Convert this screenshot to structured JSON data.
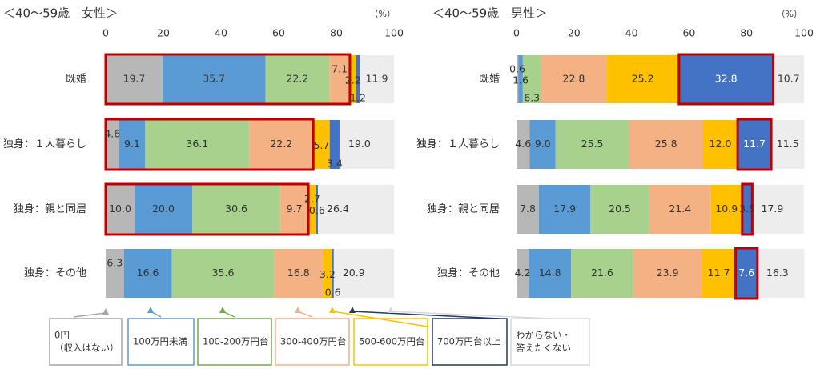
{
  "colors": {
    "zero": "#b7b7b7",
    "under100": "#5b9bd5",
    "r100_200": "#a9d18e",
    "r300_400": "#f4b183",
    "r500_600": "#ffc000",
    "over700": "#4472c4",
    "unknown": "#ededed",
    "highlight": "#c00000"
  },
  "legend": [
    {
      "key": "zero",
      "label": [
        "0円",
        "（収入はない）"
      ],
      "box_border": "#a6a6a6"
    },
    {
      "key": "under100",
      "label": [
        "100万円未満"
      ],
      "box_border": "#5b9bd5"
    },
    {
      "key": "r100_200",
      "label": [
        "100-200万円台"
      ],
      "box_border": "#70ad47"
    },
    {
      "key": "r300_400",
      "label": [
        "300-400万円台"
      ],
      "box_border": "#f4b183"
    },
    {
      "key": "r500_600",
      "label": [
        "500-600万円台"
      ],
      "box_border": "#ffc000"
    },
    {
      "key": "over700",
      "label": [
        "700万円台以上"
      ],
      "box_border": "#203864"
    },
    {
      "key": "unknown",
      "label": [
        "わからない・",
        "答えたくない"
      ],
      "box_border": "#d9d9d9"
    }
  ],
  "chart_data": [
    {
      "type": "bar",
      "orientation": "horizontal",
      "stacked": true,
      "title": "＜40～59歳　女性＞",
      "unit_label": "（%）",
      "xlim": [
        0,
        100
      ],
      "x_ticks": [
        0,
        20,
        40,
        60,
        80,
        100
      ],
      "categories": [
        "既婚",
        "独身：１人暮らし",
        "独身：親と同居",
        "独身：その他"
      ],
      "series": [
        {
          "key": "zero",
          "name": "0円（収入はない）",
          "values": [
            19.7,
            4.6,
            10.0,
            6.3
          ]
        },
        {
          "key": "under100",
          "name": "100万円未満",
          "values": [
            35.7,
            9.1,
            20.0,
            16.6
          ]
        },
        {
          "key": "r100_200",
          "name": "100-200万円台",
          "values": [
            22.2,
            36.1,
            30.6,
            35.6
          ]
        },
        {
          "key": "r300_400",
          "name": "300-400万円台",
          "values": [
            7.1,
            22.2,
            9.7,
            16.8
          ]
        },
        {
          "key": "r500_600",
          "name": "500-600万円台",
          "values": [
            2.2,
            5.7,
            2.7,
            3.2
          ]
        },
        {
          "key": "over700",
          "name": "700万円台以上",
          "values": [
            1.2,
            3.4,
            0.6,
            0.6
          ]
        },
        {
          "key": "unknown",
          "name": "わからない・答えたくない",
          "values": [
            11.9,
            19.0,
            26.4,
            20.9
          ]
        }
      ],
      "highlights": [
        {
          "row": 0,
          "from": 0,
          "to": 3
        },
        {
          "row": 1,
          "from": 0,
          "to": 3
        },
        {
          "row": 2,
          "from": 0,
          "to": 3
        }
      ]
    },
    {
      "type": "bar",
      "orientation": "horizontal",
      "stacked": true,
      "title": "＜40～59歳　男性＞",
      "unit_label": "（%）",
      "xlim": [
        0,
        100
      ],
      "x_ticks": [
        0,
        20,
        40,
        60,
        80,
        100
      ],
      "categories": [
        "既婚",
        "独身：１人暮らし",
        "独身：親と同居",
        "独身：その他"
      ],
      "series": [
        {
          "key": "zero",
          "name": "0円（収入はない）",
          "values": [
            0.6,
            4.6,
            7.8,
            4.2
          ]
        },
        {
          "key": "under100",
          "name": "100万円未満",
          "values": [
            1.6,
            9.0,
            17.9,
            14.8
          ]
        },
        {
          "key": "r100_200",
          "name": "100-200万円台",
          "values": [
            6.3,
            25.5,
            20.5,
            21.6
          ]
        },
        {
          "key": "r300_400",
          "name": "300-400万円台",
          "values": [
            22.8,
            25.8,
            21.4,
            23.9
          ]
        },
        {
          "key": "r500_600",
          "name": "500-600万円台",
          "values": [
            25.2,
            12.0,
            10.9,
            11.7
          ]
        },
        {
          "key": "over700",
          "name": "700万円台以上",
          "values": [
            32.8,
            11.7,
            3.5,
            7.6
          ]
        },
        {
          "key": "unknown",
          "name": "わからない・答えたくない",
          "values": [
            10.7,
            11.5,
            17.9,
            16.3
          ]
        }
      ],
      "highlights": [
        {
          "row": 0,
          "from": 5,
          "to": 5
        },
        {
          "row": 1,
          "from": 5,
          "to": 5
        },
        {
          "row": 2,
          "from": 5,
          "to": 5
        },
        {
          "row": 3,
          "from": 5,
          "to": 5
        }
      ]
    }
  ]
}
